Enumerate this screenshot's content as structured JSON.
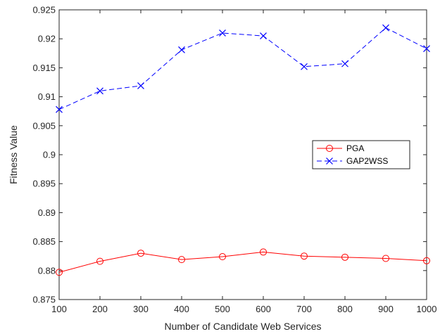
{
  "chart_data": {
    "type": "line",
    "xlabel": "Number of Candidate Web Services",
    "ylabel": "Fitness Value",
    "x": [
      100,
      200,
      300,
      400,
      500,
      600,
      700,
      800,
      900,
      1000
    ],
    "xlim": [
      100,
      1000
    ],
    "ylim": [
      0.875,
      0.925
    ],
    "xticks": [
      100,
      200,
      300,
      400,
      500,
      600,
      700,
      800,
      900,
      1000
    ],
    "yticks": [
      0.875,
      0.88,
      0.885,
      0.89,
      0.895,
      0.9,
      0.905,
      0.91,
      0.915,
      0.92,
      0.925
    ],
    "ytick_labels": [
      "0.875",
      "0.88",
      "0.885",
      "0.89",
      "0.895",
      "0.9",
      "0.905",
      "0.91",
      "0.915",
      "0.92",
      "0.925"
    ],
    "grid": false,
    "legend_position": "right",
    "series": [
      {
        "name": "PGA",
        "color": "#ff0000",
        "line_style": "solid",
        "marker": "circle",
        "values": [
          0.8797,
          0.8816,
          0.883,
          0.8819,
          0.8824,
          0.8832,
          0.8825,
          0.8823,
          0.8821,
          0.8817
        ]
      },
      {
        "name": "GAP2WSS",
        "color": "#0000ff",
        "line_style": "dashed",
        "marker": "x",
        "values": [
          0.9078,
          0.911,
          0.9119,
          0.9181,
          0.921,
          0.9205,
          0.9152,
          0.9157,
          0.9219,
          0.9183
        ]
      }
    ]
  }
}
